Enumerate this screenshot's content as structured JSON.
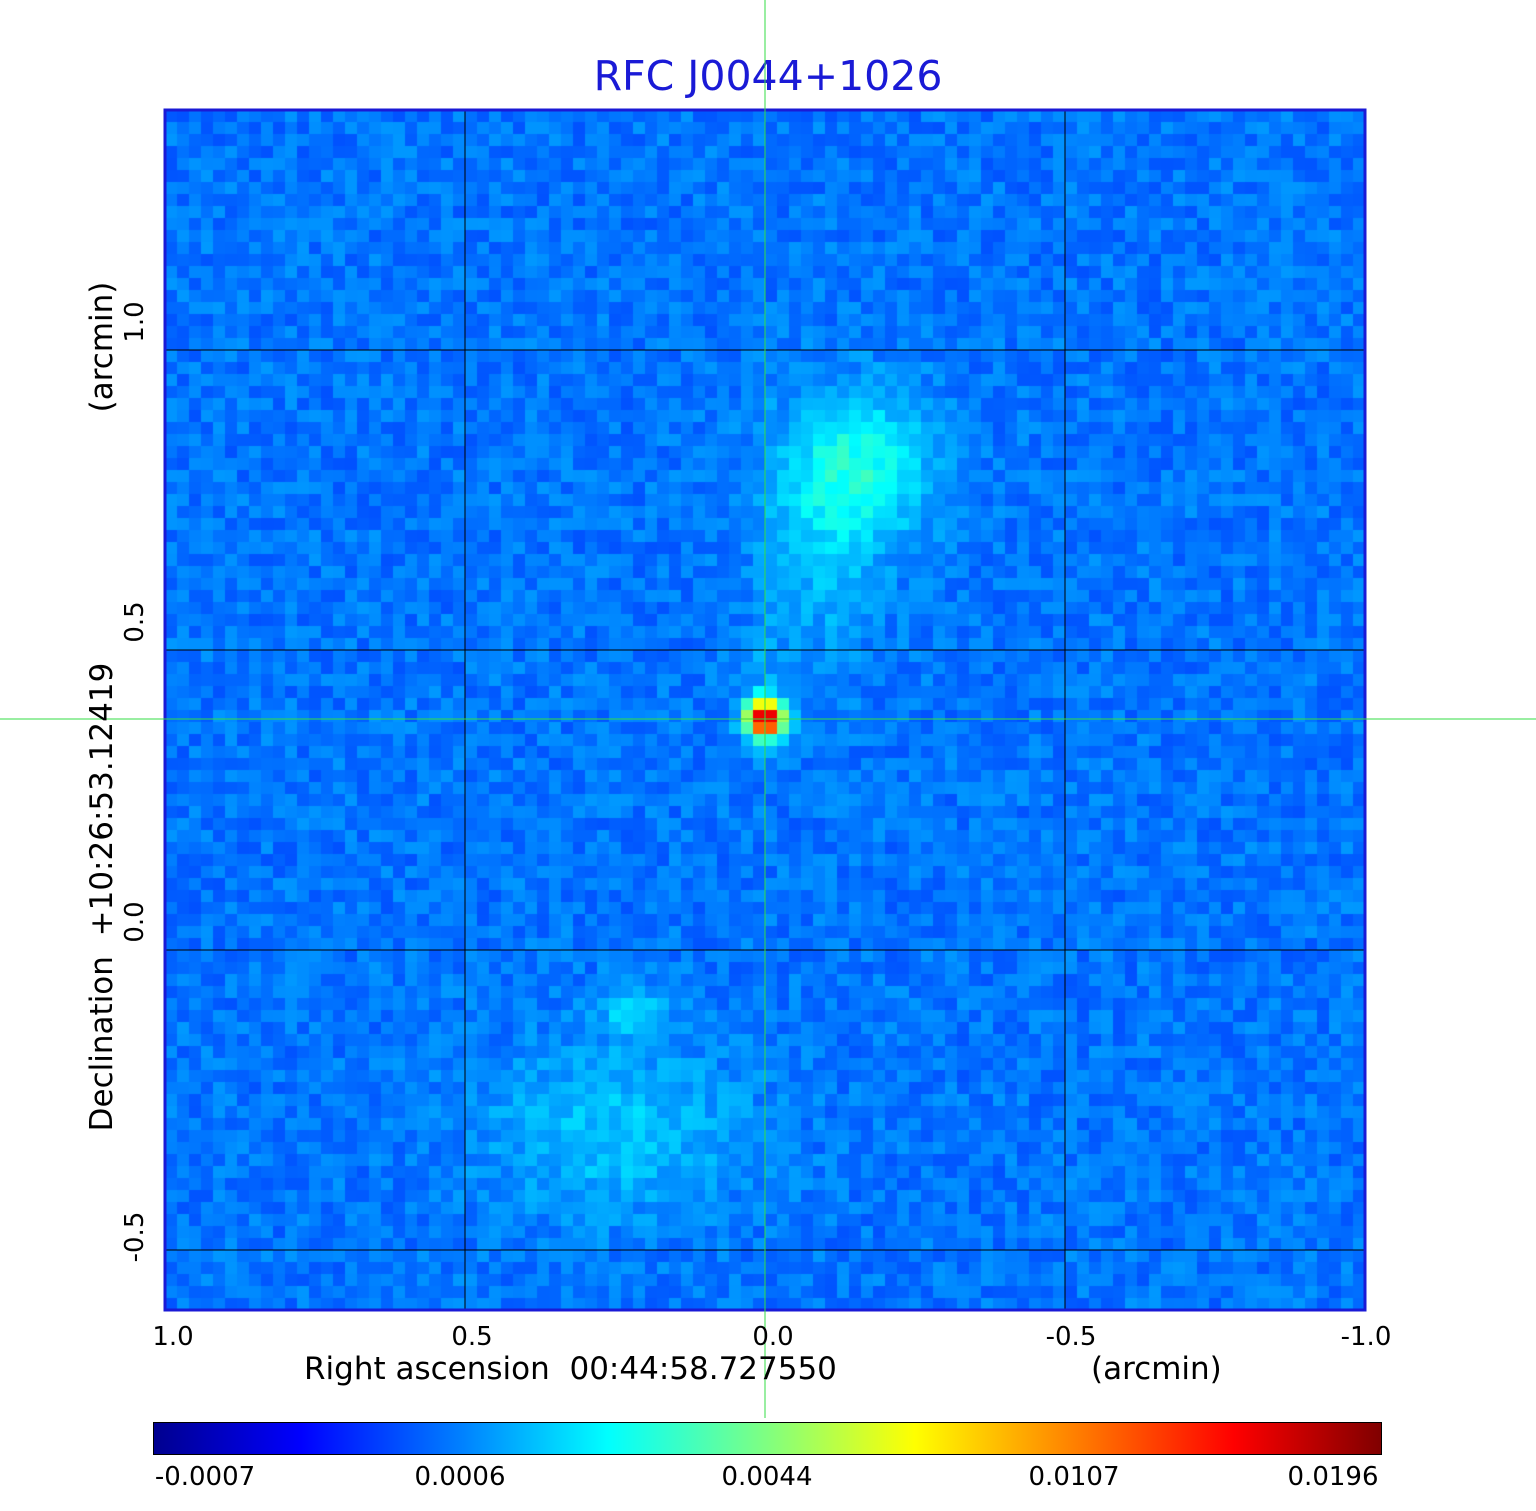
{
  "chart_data": {
    "type": "heatmap",
    "title": "RFC J0044+1026",
    "xlabel": "Right ascension  00:44:58.727550",
    "xunit": "(arcmin)",
    "ylabel": "Declination  +10:26:53.12419",
    "yunit": "(arcmin)",
    "xlim": [
      1.0,
      -1.0
    ],
    "ylim": [
      -0.6,
      1.4
    ],
    "x_ticks": [
      "1.0",
      "0.5",
      "0.0",
      "-0.5",
      "-1.0"
    ],
    "y_ticks": [
      "1.0",
      "0.5",
      "0.0",
      "-0.5"
    ],
    "grid": true,
    "crosshair": {
      "x": 0.0,
      "y": 0.385
    },
    "colormap": "jet",
    "colorbar_ticks": [
      "-0.0007",
      "0.0006",
      "0.0044",
      "0.0107",
      "0.0196"
    ],
    "colorbar_range": [
      -0.0007,
      0.0196
    ],
    "features": [
      {
        "name": "core",
        "x": 0.0,
        "y": 0.385,
        "peak": 0.0196
      },
      {
        "name": "northern lobe",
        "x": -0.15,
        "y": 0.8,
        "peak": 0.004
      },
      {
        "name": "southern lobe",
        "x": 0.25,
        "y": -0.15,
        "peak": 0.002
      }
    ]
  }
}
